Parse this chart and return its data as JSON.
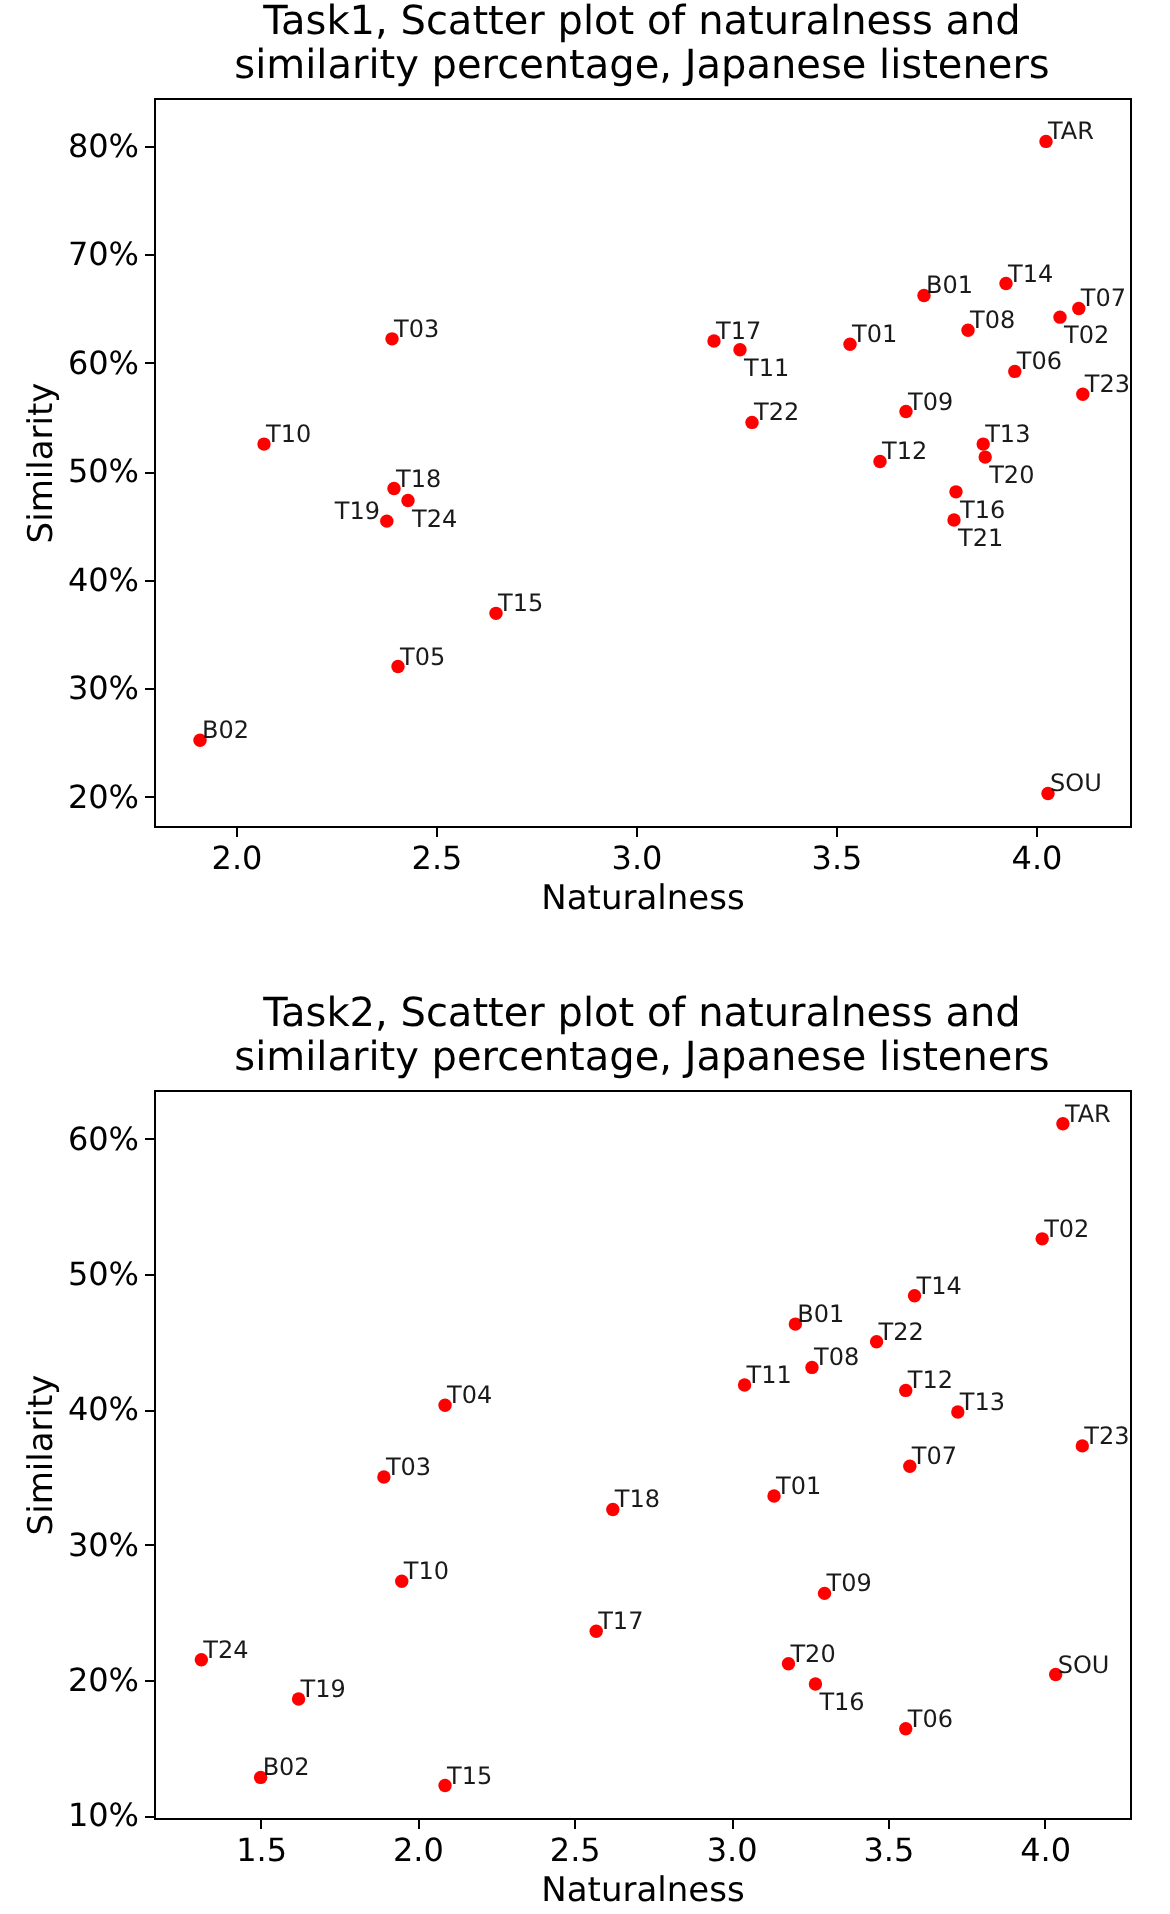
{
  "chart_data": [
    {
      "type": "scatter",
      "title": "Task1, Scatter plot of naturalness and\nsimilarity percentage, Japanese listeners",
      "xlabel": "Naturalness",
      "ylabel": "Similarity",
      "color": "#ff0000",
      "marker": "circle",
      "grid": false,
      "x": [
        4.025,
        3.925,
        3.72,
        4.107,
        4.06,
        3.83,
        2.39,
        3.195,
        3.26,
        3.535,
        3.947,
        4.117,
        3.675,
        3.29,
        2.07,
        3.868,
        3.873,
        3.61,
        2.395,
        2.43,
        3.8,
        2.377,
        3.795,
        2.65,
        2.405,
        1.91,
        4.03
      ],
      "values": [
        80.4,
        67.3,
        66.2,
        65.0,
        64.2,
        63.0,
        62.2,
        62.0,
        61.2,
        61.7,
        59.2,
        57.1,
        55.5,
        54.5,
        52.5,
        52.5,
        51.3,
        50.9,
        48.4,
        47.3,
        48.1,
        45.4,
        45.5,
        36.9,
        32.0,
        25.2,
        20.3
      ],
      "xlim": [
        1.795,
        4.235
      ],
      "ylim": [
        17.3,
        84.4
      ],
      "xticks": [
        {
          "value": 2,
          "label": "2.0"
        },
        {
          "value": 2.5,
          "label": "2.5"
        },
        {
          "value": 3,
          "label": "3.0"
        },
        {
          "value": 3.5,
          "label": "3.5"
        },
        {
          "value": 4,
          "label": "4.0"
        }
      ],
      "yticks": [
        {
          "value": 20,
          "label": "20%"
        },
        {
          "value": 30,
          "label": "30%"
        },
        {
          "value": 40,
          "label": "40%"
        },
        {
          "value": 50,
          "label": "50%"
        },
        {
          "value": 60,
          "label": "60%"
        },
        {
          "value": 70,
          "label": "70%"
        },
        {
          "value": 80,
          "label": "80%"
        }
      ],
      "annotations": [
        {
          "text": "TAR",
          "x": 4.025,
          "y": 80.4
        },
        {
          "text": "T14",
          "x": 3.925,
          "y": 67.3
        },
        {
          "text": "B01",
          "x": 3.72,
          "y": 66.2
        },
        {
          "text": "T07",
          "x": 4.107,
          "y": 65.0
        },
        {
          "text": "T02",
          "x": 4.06,
          "y": 64.2
        },
        {
          "text": "T08",
          "x": 3.83,
          "y": 63.0
        },
        {
          "text": "T03",
          "x": 2.39,
          "y": 62.2
        },
        {
          "text": "T17",
          "x": 3.195,
          "y": 62.0
        },
        {
          "text": "T11",
          "x": 3.26,
          "y": 61.2
        },
        {
          "text": "T01",
          "x": 3.535,
          "y": 61.7
        },
        {
          "text": "T06",
          "x": 3.947,
          "y": 59.2
        },
        {
          "text": "T23",
          "x": 4.117,
          "y": 57.1
        },
        {
          "text": "T09",
          "x": 3.675,
          "y": 55.5
        },
        {
          "text": "T22",
          "x": 3.29,
          "y": 54.5
        },
        {
          "text": "T10",
          "x": 2.07,
          "y": 52.5
        },
        {
          "text": "T13",
          "x": 3.868,
          "y": 52.5
        },
        {
          "text": "T20",
          "x": 3.873,
          "y": 51.3
        },
        {
          "text": "T12",
          "x": 3.61,
          "y": 50.9
        },
        {
          "text": "T18",
          "x": 2.395,
          "y": 48.4
        },
        {
          "text": "T24",
          "x": 2.43,
          "y": 47.3
        },
        {
          "text": "T16",
          "x": 3.8,
          "y": 48.1
        },
        {
          "text": "T19",
          "x": 2.377,
          "y": 45.4
        },
        {
          "text": "T21",
          "x": 3.795,
          "y": 45.5
        },
        {
          "text": "T15",
          "x": 2.65,
          "y": 36.9
        },
        {
          "text": "T05",
          "x": 2.405,
          "y": 32.0
        },
        {
          "text": "B02",
          "x": 1.91,
          "y": 25.2
        },
        {
          "text": "SOU",
          "x": 4.03,
          "y": 20.3
        }
      ]
    },
    {
      "type": "scatter",
      "title": "Task2, Scatter plot of naturalness and\nsimilarity percentage, Japanese listeners",
      "xlabel": "Naturalness",
      "ylabel": "Similarity",
      "color": "#ff0000",
      "marker": "circle",
      "grid": false,
      "x": [
        4.058,
        3.992,
        3.585,
        3.205,
        3.464,
        3.258,
        3.043,
        3.557,
        2.088,
        3.723,
        4.12,
        3.57,
        1.893,
        3.137,
        2.623,
        1.95,
        3.298,
        2.57,
        1.311,
        3.183,
        4.035,
        3.269,
        1.621,
        3.557,
        1.5,
        2.088
      ],
      "values": [
        61.1,
        52.6,
        48.4,
        46.3,
        45.0,
        43.1,
        41.8,
        41.4,
        40.3,
        39.8,
        37.3,
        35.8,
        35.0,
        33.6,
        32.6,
        27.3,
        26.4,
        23.6,
        21.5,
        21.2,
        20.4,
        19.7,
        18.6,
        16.4,
        12.8,
        12.2
      ],
      "xlim": [
        1.16,
        4.272
      ],
      "ylim": [
        9.8,
        63.6
      ],
      "xticks": [
        {
          "value": 1.5,
          "label": "1.5"
        },
        {
          "value": 2,
          "label": "2.0"
        },
        {
          "value": 2.5,
          "label": "2.5"
        },
        {
          "value": 3,
          "label": "3.0"
        },
        {
          "value": 3.5,
          "label": "3.5"
        },
        {
          "value": 4,
          "label": "4.0"
        }
      ],
      "yticks": [
        {
          "value": 10,
          "label": "10%"
        },
        {
          "value": 20,
          "label": "20%"
        },
        {
          "value": 30,
          "label": "30%"
        },
        {
          "value": 40,
          "label": "40%"
        },
        {
          "value": 50,
          "label": "50%"
        },
        {
          "value": 60,
          "label": "60%"
        }
      ],
      "annotations": [
        {
          "text": "TAR",
          "x": 4.058,
          "y": 61.1
        },
        {
          "text": "T02",
          "x": 3.992,
          "y": 52.6
        },
        {
          "text": "T14",
          "x": 3.585,
          "y": 48.4
        },
        {
          "text": "B01",
          "x": 3.205,
          "y": 46.3
        },
        {
          "text": "T22",
          "x": 3.464,
          "y": 45.0
        },
        {
          "text": "T08",
          "x": 3.258,
          "y": 43.1
        },
        {
          "text": "T11",
          "x": 3.043,
          "y": 41.8
        },
        {
          "text": "T12",
          "x": 3.557,
          "y": 41.4
        },
        {
          "text": "T04",
          "x": 2.088,
          "y": 40.3
        },
        {
          "text": "T13",
          "x": 3.723,
          "y": 39.8
        },
        {
          "text": "T23",
          "x": 4.12,
          "y": 37.3
        },
        {
          "text": "T07",
          "x": 3.57,
          "y": 35.8
        },
        {
          "text": "T03",
          "x": 1.893,
          "y": 35.0
        },
        {
          "text": "T01",
          "x": 3.137,
          "y": 33.6
        },
        {
          "text": "T18",
          "x": 2.623,
          "y": 32.6
        },
        {
          "text": "T10",
          "x": 1.95,
          "y": 27.3
        },
        {
          "text": "T09",
          "x": 3.298,
          "y": 26.4
        },
        {
          "text": "T17",
          "x": 2.57,
          "y": 23.6
        },
        {
          "text": "T24",
          "x": 1.311,
          "y": 21.5
        },
        {
          "text": "T20",
          "x": 3.183,
          "y": 21.2
        },
        {
          "text": "SOU",
          "x": 4.035,
          "y": 20.4
        },
        {
          "text": "T16",
          "x": 3.269,
          "y": 19.7
        },
        {
          "text": "T19",
          "x": 1.621,
          "y": 18.6
        },
        {
          "text": "T06",
          "x": 3.557,
          "y": 16.4
        },
        {
          "text": "B02",
          "x": 1.5,
          "y": 12.8
        },
        {
          "text": "T15",
          "x": 2.088,
          "y": 12.2
        }
      ]
    }
  ]
}
